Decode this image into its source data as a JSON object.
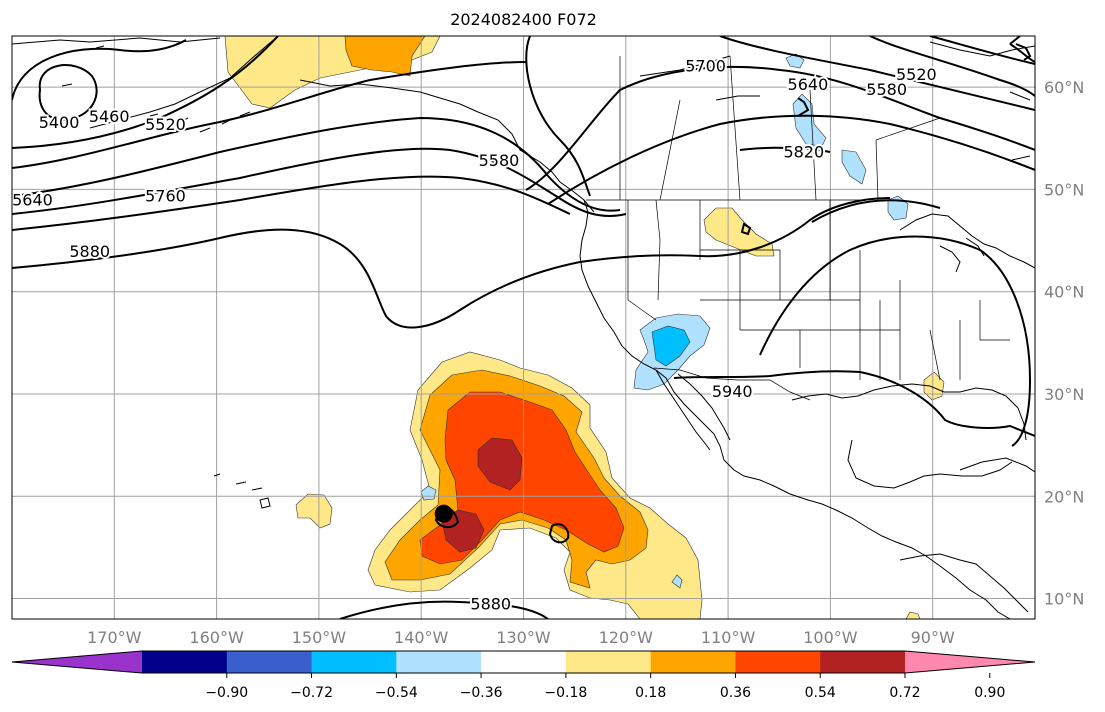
{
  "title": "2024082400 F072",
  "map": {
    "lon_range": [
      -180,
      -80
    ],
    "lat_range": [
      8,
      65
    ],
    "lon_ticks": [
      {
        "lon": -170,
        "label": "170°W"
      },
      {
        "lon": -160,
        "label": "160°W"
      },
      {
        "lon": -150,
        "label": "150°W"
      },
      {
        "lon": -140,
        "label": "140°W"
      },
      {
        "lon": -130,
        "label": "130°W"
      },
      {
        "lon": -120,
        "label": "120°W"
      },
      {
        "lon": -110,
        "label": "110°W"
      },
      {
        "lon": -100,
        "label": "100°W"
      },
      {
        "lon": -90,
        "label": "90°W"
      }
    ],
    "lat_ticks": [
      {
        "lat": 60,
        "label": "60°N"
      },
      {
        "lat": 50,
        "label": "50°N"
      },
      {
        "lat": 40,
        "label": "40°N"
      },
      {
        "lat": 30,
        "label": "30°N"
      },
      {
        "lat": 20,
        "label": "20°N"
      },
      {
        "lat": 10,
        "label": "10°N"
      }
    ],
    "gridlines": true,
    "marker": {
      "lon": -137.8,
      "lat": 18.3
    }
  },
  "contour_labels": [
    {
      "text": "5400",
      "lon": -175.4,
      "lat": 56.6
    },
    {
      "text": "5460",
      "lon": -170.5,
      "lat": 57.2
    },
    {
      "text": "5520",
      "lon": -165.0,
      "lat": 56.4
    },
    {
      "text": "5580",
      "lon": -132.4,
      "lat": 52.9
    },
    {
      "text": "5640",
      "lon": -178.0,
      "lat": 49.0
    },
    {
      "text": "5760",
      "lon": -165.0,
      "lat": 49.4
    },
    {
      "text": "5880",
      "lon": -172.4,
      "lat": 44.0
    },
    {
      "text": "5700",
      "lon": -112.2,
      "lat": 62.1
    },
    {
      "text": "5640",
      "lon": -102.2,
      "lat": 60.3
    },
    {
      "text": "5580",
      "lon": -94.5,
      "lat": 59.8
    },
    {
      "text": "5520",
      "lon": -91.6,
      "lat": 61.3
    },
    {
      "text": "5820",
      "lon": -102.6,
      "lat": 53.7
    },
    {
      "text": "5940",
      "lon": -109.6,
      "lat": 30.3
    },
    {
      "text": "5880",
      "lon": -133.2,
      "lat": 9.5
    }
  ],
  "colorbar": {
    "ticks": [
      "−0.90",
      "−0.72",
      "−0.54",
      "−0.36",
      "−0.18",
      "0.18",
      "0.36",
      "0.54",
      "0.72",
      "0.90"
    ],
    "colors": [
      "#9933cc",
      "#00008b",
      "#3a5fcd",
      "#00bfff",
      "#b0e2ff",
      "#ffffff",
      "#ffe887",
      "#ffa500",
      "#ff4500",
      "#b22222",
      "#ff88ae"
    ],
    "extend": "both"
  }
}
